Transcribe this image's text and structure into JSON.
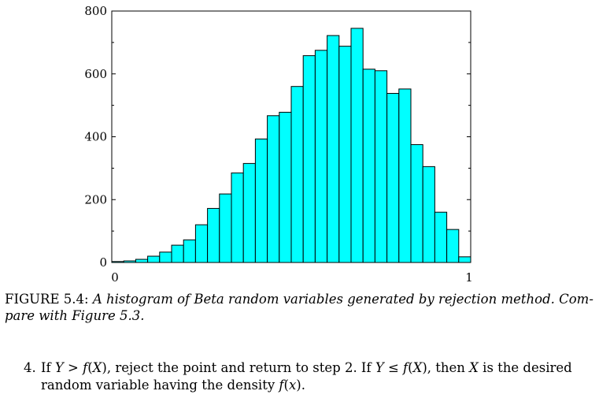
{
  "chart_data": {
    "type": "bar",
    "xlim": [
      0,
      1
    ],
    "ylim": [
      0,
      800
    ],
    "x_ticks": [
      "0",
      "1"
    ],
    "y_ticks": [
      {
        "value": 0,
        "label": "0"
      },
      {
        "value": 200,
        "label": "200"
      },
      {
        "value": 400,
        "label": "400"
      },
      {
        "value": 600,
        "label": "600"
      },
      {
        "value": 800,
        "label": "800"
      }
    ],
    "bin_width": 0.0333,
    "values": [
      3,
      5,
      10,
      20,
      33,
      55,
      72,
      120,
      172,
      218,
      285,
      315,
      393,
      467,
      478,
      560,
      658,
      675,
      722,
      688,
      745,
      615,
      610,
      538,
      552,
      375,
      305,
      160,
      105,
      18
    ],
    "bar_color": "#00FFFF",
    "edge_color": "#000000",
    "grid": false
  },
  "caption": {
    "label": "FIGURE 5.4:",
    "line1": "A histogram of Beta random variables generated by rejection method. Com-",
    "line2": "pare with Figure 5.3."
  },
  "step": {
    "number": "4.",
    "t1": "If ",
    "t2": "Y",
    "t3": " > ",
    "t4": "f",
    "t5": "(",
    "t6": "X",
    "t7": "), reject the point and return to step 2. If ",
    "t8": "Y",
    "t9": " ≤ ",
    "t10": "f",
    "t11": "(",
    "t12": "X",
    "t13": "), then ",
    "t14": "X",
    "t15": " is the desired",
    "l2a": "random variable having the density ",
    "l2b": "f",
    "l2c": "(",
    "l2d": "x",
    "l2e": ")."
  }
}
